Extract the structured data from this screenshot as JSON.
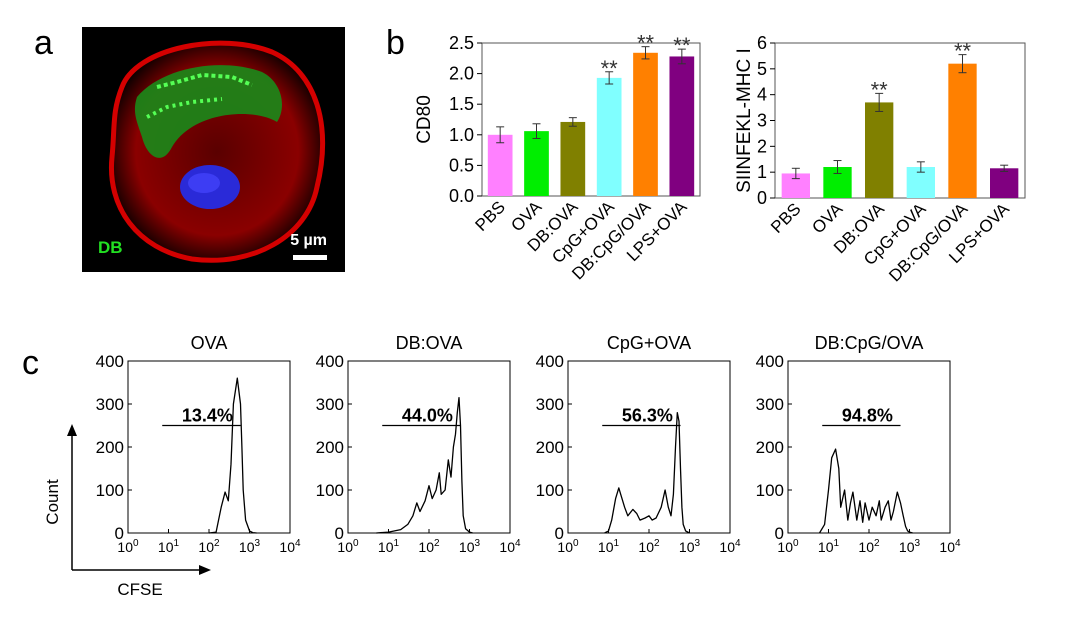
{
  "panels": {
    "a": "a",
    "b": "b",
    "c": "c"
  },
  "micrograph": {
    "channel_label": "DB",
    "scale_bar_label": "5 µm"
  },
  "chart_data": [
    {
      "type": "bar",
      "categories": [
        "PBS",
        "OVA",
        "DB:OVA",
        "CpG+OVA",
        "DB:CpG/OVA",
        "LPS+OVA"
      ],
      "values": [
        1.0,
        1.06,
        1.21,
        1.93,
        2.34,
        2.28
      ],
      "errors": [
        0.13,
        0.12,
        0.07,
        0.1,
        0.1,
        0.12
      ],
      "significance": [
        "",
        "",
        "",
        "**",
        "**",
        "**"
      ],
      "colors": [
        "#ff80ff",
        "#00ee00",
        "#808000",
        "#80ffff",
        "#ff8000",
        "#800080"
      ],
      "ylabel": "CD80",
      "ylim": [
        0,
        2.5
      ],
      "yticks": [
        "0.0",
        "0.5",
        "1.0",
        "1.5",
        "2.0",
        "2.5"
      ]
    },
    {
      "type": "bar",
      "categories": [
        "PBS",
        "OVA",
        "DB:OVA",
        "CpG+OVA",
        "DB:CpG/OVA",
        "LPS+OVA"
      ],
      "values": [
        0.95,
        1.2,
        3.7,
        1.2,
        5.2,
        1.15
      ],
      "errors": [
        0.2,
        0.25,
        0.35,
        0.2,
        0.35,
        0.12
      ],
      "significance": [
        "",
        "",
        "**",
        "",
        "**",
        ""
      ],
      "colors": [
        "#ff80ff",
        "#00ee00",
        "#808000",
        "#80ffff",
        "#ff8000",
        "#800080"
      ],
      "ylabel": "SIINFEKL-MHC I",
      "ylim": [
        0,
        6
      ],
      "yticks": [
        "0",
        "1",
        "2",
        "3",
        "4",
        "5",
        "6"
      ]
    },
    {
      "type": "line",
      "title": "OVA",
      "percent_label": "13.4%",
      "xscale": "log",
      "xlim": [
        1,
        10000
      ],
      "ylim": [
        0,
        400
      ],
      "yticks": [
        "0",
        "100",
        "200",
        "300",
        "400"
      ],
      "x": [
        100,
        150,
        200,
        250,
        300,
        350,
        400,
        500,
        600,
        650,
        700,
        800,
        1000,
        1200,
        1500
      ],
      "y": [
        0,
        2,
        60,
        95,
        75,
        160,
        300,
        360,
        300,
        200,
        100,
        30,
        5,
        1,
        0
      ]
    },
    {
      "type": "line",
      "title": "DB:OVA",
      "percent_label": "44.0%",
      "xscale": "log",
      "xlim": [
        1,
        10000
      ],
      "ylim": [
        0,
        400
      ],
      "yticks": [
        "0",
        "100",
        "200",
        "300",
        "400"
      ],
      "x": [
        5,
        10,
        20,
        30,
        40,
        50,
        60,
        80,
        100,
        120,
        150,
        180,
        200,
        250,
        300,
        350,
        400,
        450,
        500,
        550,
        600,
        650,
        700,
        800,
        1000,
        1200
      ],
      "y": [
        0,
        2,
        8,
        20,
        40,
        70,
        50,
        75,
        110,
        80,
        100,
        140,
        90,
        100,
        170,
        130,
        200,
        230,
        280,
        315,
        250,
        120,
        40,
        10,
        2,
        0
      ]
    },
    {
      "type": "line",
      "title": "CpG+OVA",
      "percent_label": "56.3%",
      "xscale": "log",
      "xlim": [
        1,
        10000
      ],
      "ylim": [
        0,
        400
      ],
      "yticks": [
        "0",
        "100",
        "200",
        "300",
        "400"
      ],
      "x": [
        8,
        10,
        12,
        15,
        18,
        20,
        25,
        30,
        40,
        50,
        60,
        80,
        100,
        120,
        150,
        200,
        250,
        300,
        350,
        400,
        450,
        500,
        550,
        600,
        650,
        700,
        800,
        1000
      ],
      "y": [
        0,
        5,
        30,
        80,
        105,
        90,
        60,
        40,
        55,
        45,
        30,
        35,
        40,
        30,
        35,
        60,
        100,
        60,
        40,
        90,
        200,
        280,
        260,
        150,
        60,
        20,
        5,
        0
      ]
    },
    {
      "type": "line",
      "title": "DB:CpG/OVA",
      "percent_label": "94.8%",
      "xscale": "log",
      "xlim": [
        1,
        10000
      ],
      "ylim": [
        0,
        400
      ],
      "yticks": [
        "0",
        "100",
        "200",
        "300",
        "400"
      ],
      "x": [
        6,
        8,
        10,
        12,
        15,
        18,
        20,
        25,
        30,
        35,
        40,
        50,
        60,
        70,
        80,
        100,
        120,
        150,
        180,
        200,
        250,
        300,
        350,
        400,
        500,
        600,
        700,
        800,
        900,
        1000,
        1200
      ],
      "y": [
        0,
        20,
        100,
        175,
        195,
        150,
        60,
        100,
        30,
        70,
        95,
        30,
        75,
        25,
        70,
        30,
        60,
        40,
        75,
        30,
        60,
        75,
        30,
        50,
        95,
        70,
        40,
        15,
        5,
        2,
        0
      ]
    }
  ],
  "axis_labels": {
    "count": "Count",
    "cfse": "CFSE"
  }
}
